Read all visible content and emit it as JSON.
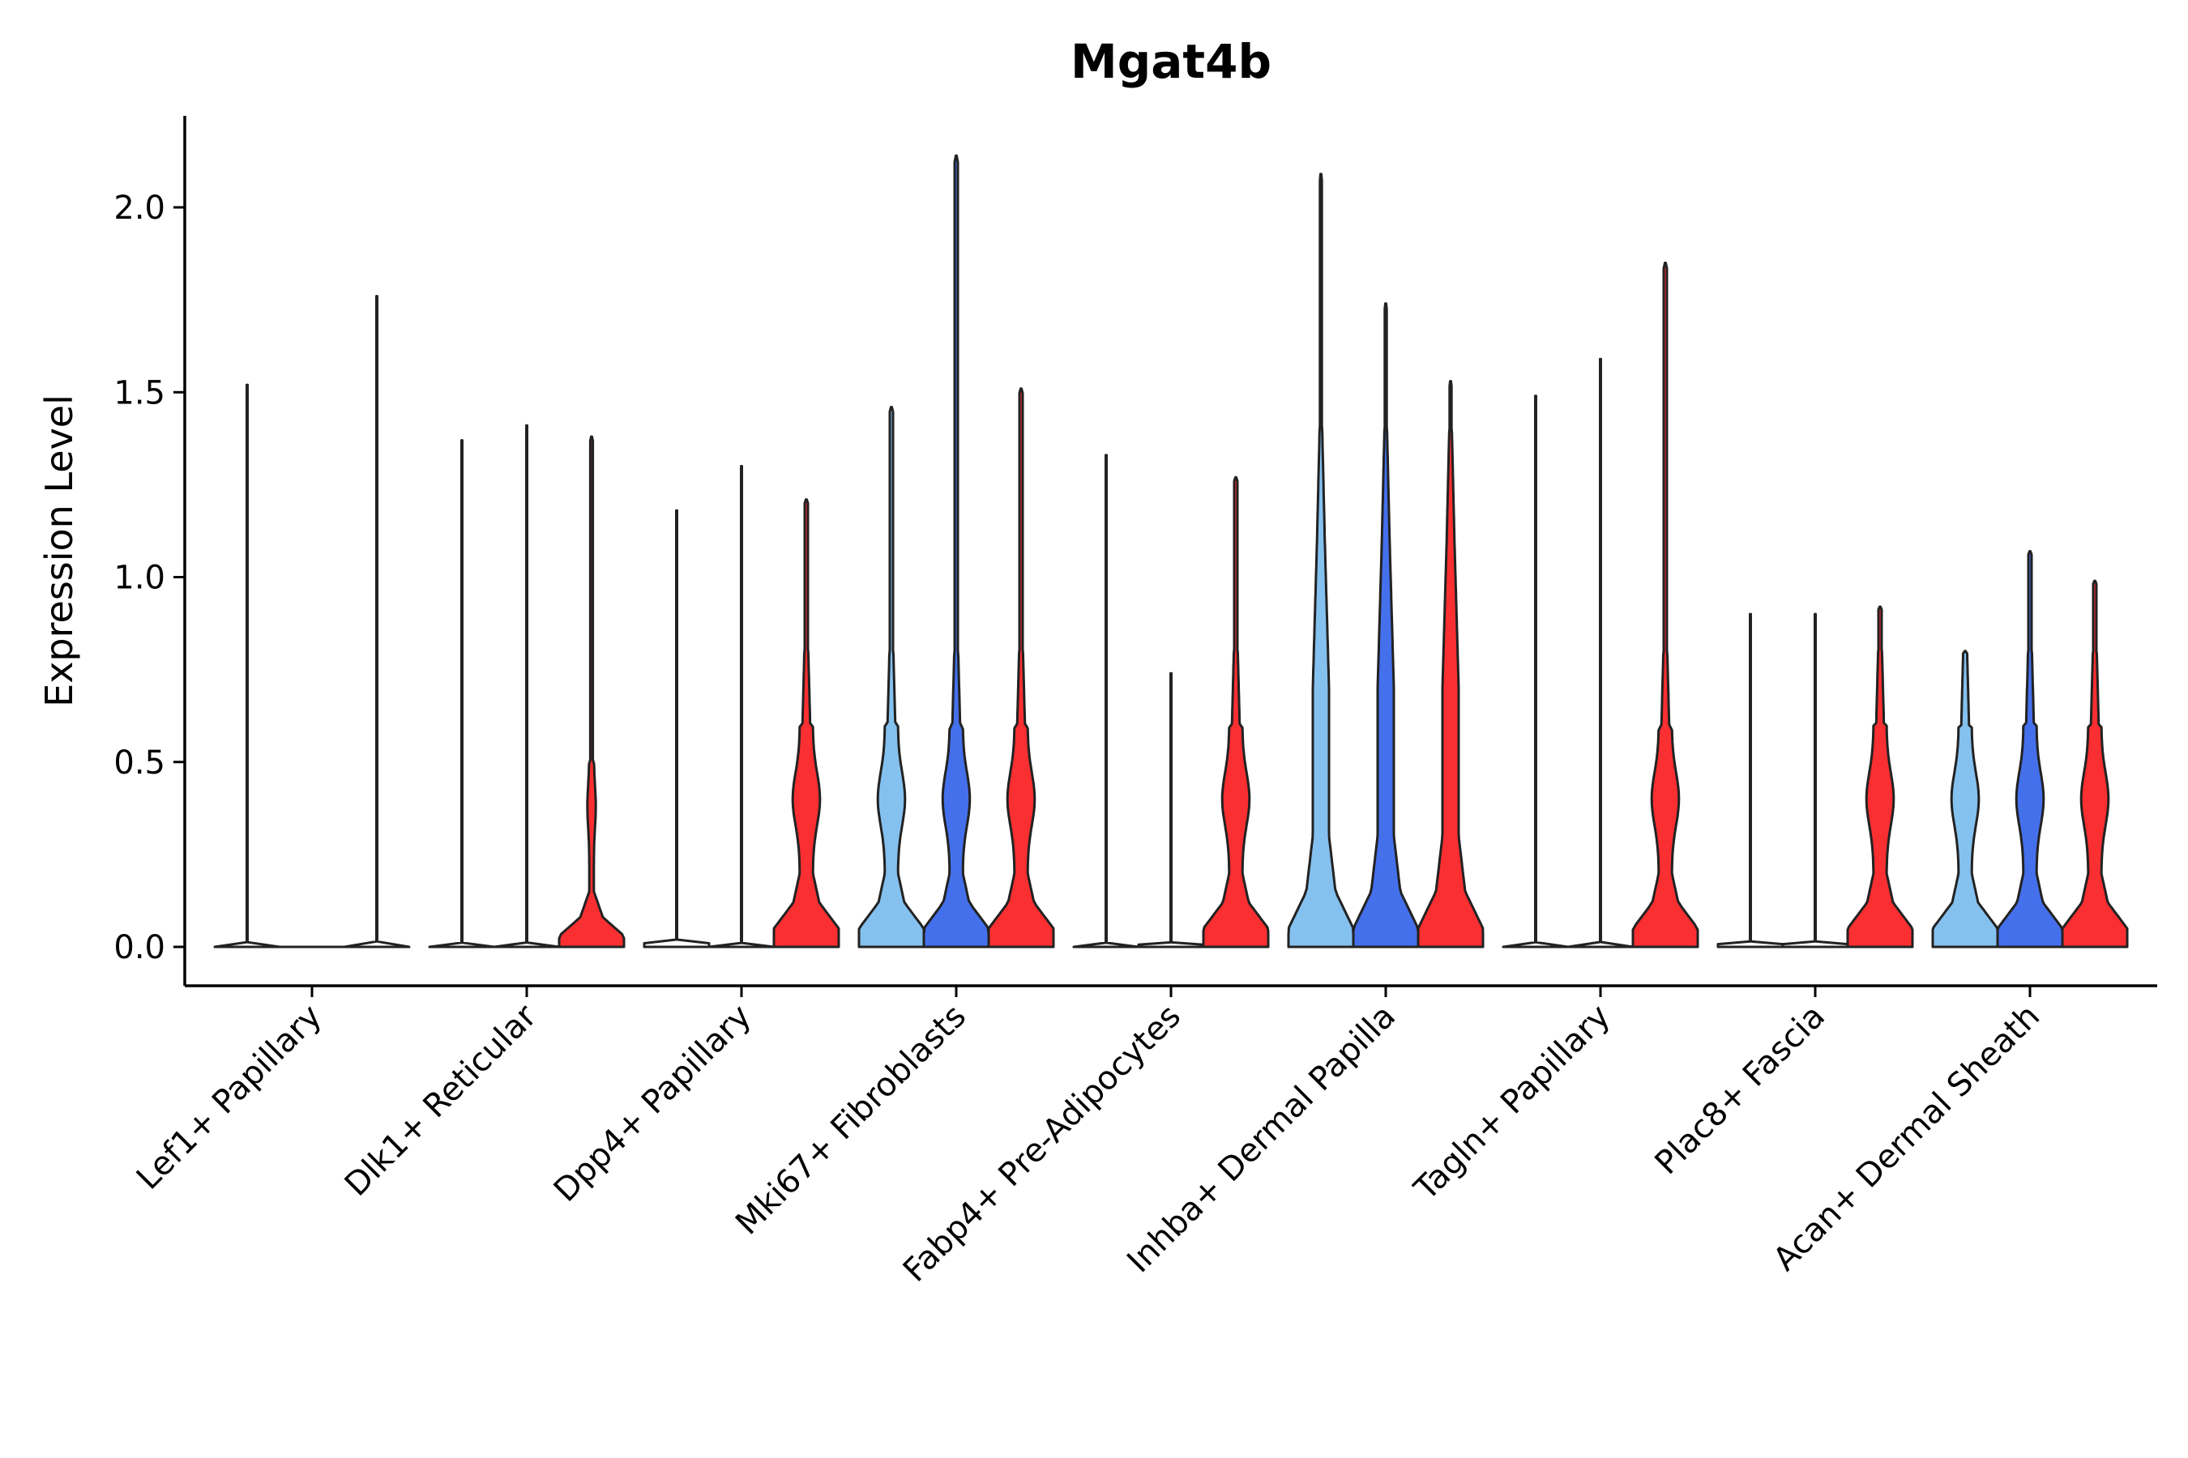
{
  "chart_data": {
    "type": "violin",
    "title": "Mgat4b",
    "xlabel": "",
    "ylabel": "Expression Level",
    "ylim": [
      -0.11,
      2.25
    ],
    "yticks": [
      0.0,
      0.5,
      1.0,
      1.5,
      2.0
    ],
    "ytick_labels": [
      "0.0",
      "0.5",
      "1.0",
      "1.5",
      "2.0"
    ],
    "grid": false,
    "legend": "none",
    "categories": [
      "Lef1+ Papillary",
      "Dlk1+ Reticular",
      "Dpp4+ Papillary",
      "Mki67+ Fibroblasts",
      "Fabp4+ Pre-Adipocytes",
      "Inhba+ Dermal Papilla",
      "Tagln+ Papillary",
      "Plac8+ Fascia",
      "Acan+ Dermal Sheath"
    ],
    "series": [
      {
        "name": "Group 1",
        "color": "#85c1ef",
        "max_values": [
          1.52,
          1.37,
          1.18,
          1.46,
          1.33,
          2.09,
          1.49,
          0.9,
          0.8
        ],
        "shape": [
          "flat",
          "flat",
          "flat",
          "mid",
          "flat",
          "high",
          "flat",
          "flat",
          "mid"
        ]
      },
      {
        "name": "Group 2",
        "color": "#4570ec",
        "max_values": [
          null,
          1.41,
          1.3,
          2.14,
          0.74,
          1.74,
          1.59,
          0.9,
          1.07
        ],
        "shape": [
          "none",
          "flat",
          "flat",
          "mid",
          "flat",
          "high",
          "flat",
          "flat",
          "mid"
        ]
      },
      {
        "name": "Group 3",
        "color": "#fa2f31",
        "max_values": [
          1.76,
          1.38,
          1.21,
          1.51,
          1.27,
          1.53,
          1.85,
          0.92,
          0.99
        ],
        "shape": [
          "flat",
          "small",
          "mid",
          "mid",
          "mid",
          "high",
          "mid",
          "mid",
          "mid"
        ]
      }
    ]
  }
}
